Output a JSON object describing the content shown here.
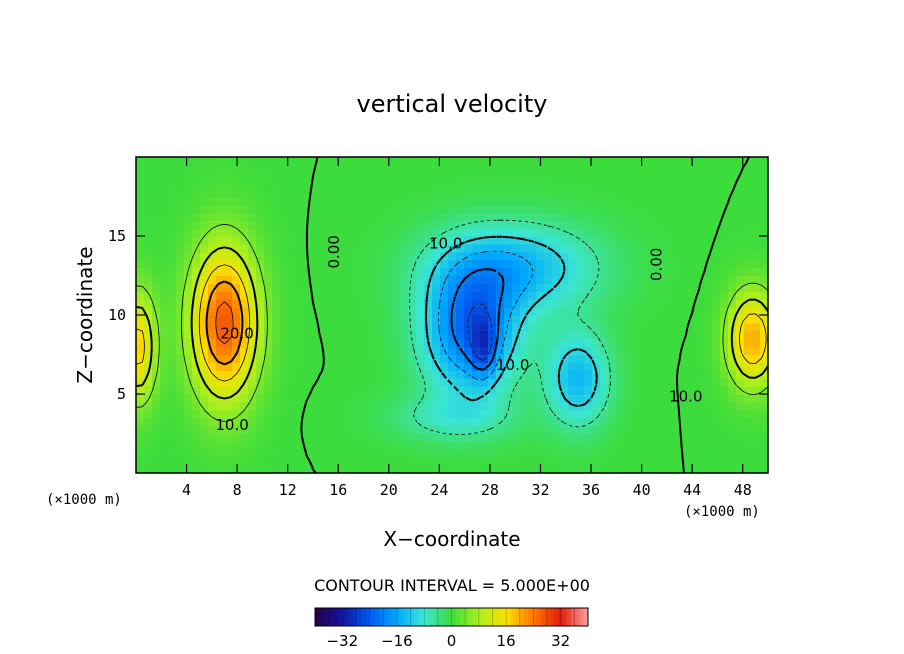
{
  "chart_data": {
    "type": "heatmap",
    "title": "vertical velocity",
    "xlabel": "X−coordinate",
    "ylabel": "Z−coordinate",
    "x_unit": "(×1000 m)",
    "y_unit": "(×1000 m)",
    "xlim": [
      0,
      50
    ],
    "ylim": [
      0,
      20
    ],
    "x_ticks": [
      4,
      8,
      12,
      16,
      20,
      24,
      28,
      32,
      36,
      40,
      44,
      48
    ],
    "y_ticks": [
      5,
      10,
      15
    ],
    "contour_interval_text": "CONTOUR INTERVAL = 5.000E+00",
    "contour_interval": 5,
    "contour_labels": [
      {
        "text": "20.0",
        "x": 8.0,
        "y": 8.8
      },
      {
        "text": "10.0",
        "x": 7.6,
        "y": 3.0
      },
      {
        "text": "0.00",
        "x": 15.7,
        "y": 14.0
      },
      {
        "text": "10.0",
        "x": 24.5,
        "y": 14.5
      },
      {
        "text": "10.0",
        "x": 29.8,
        "y": 6.8
      },
      {
        "text": "0.00",
        "x": 41.2,
        "y": 13.2
      },
      {
        "text": "10.0",
        "x": 43.5,
        "y": 4.8
      }
    ],
    "features": [
      {
        "name": "updraft-left",
        "x": 7,
        "y": 9.5,
        "sx": 2.6,
        "sy": 4.8,
        "amp": 27
      },
      {
        "name": "updraft-edge-left",
        "x": 0.2,
        "y": 8,
        "sx": 1.4,
        "sy": 3.5,
        "amp": 17
      },
      {
        "name": "updraft-right",
        "x": 48.8,
        "y": 8.5,
        "sx": 2.0,
        "sy": 3.0,
        "amp": 20
      },
      {
        "name": "downdraft-main",
        "x": 26.5,
        "y": 9,
        "sx": 3.8,
        "sy": 4.0,
        "amp": -22
      },
      {
        "name": "downdraft-core",
        "x": 27.5,
        "y": 8,
        "sx": 1.0,
        "sy": 2.0,
        "amp": -10
      },
      {
        "name": "downdraft-upper",
        "x": 30,
        "y": 13,
        "sx": 6.5,
        "sy": 2.8,
        "amp": -14
      },
      {
        "name": "downdraft-right",
        "x": 35,
        "y": 6,
        "sx": 2.5,
        "sy": 3.0,
        "amp": -14
      },
      {
        "name": "downdraft-low",
        "x": 25,
        "y": 3.5,
        "sx": 5.0,
        "sy": 1.5,
        "amp": -6
      }
    ],
    "colorbar": {
      "min": -40,
      "max": 40,
      "ticks": [
        -32,
        -16,
        0,
        16,
        32
      ],
      "tick_labels": [
        "−32",
        "−16",
        "0",
        "16",
        "32"
      ]
    }
  }
}
